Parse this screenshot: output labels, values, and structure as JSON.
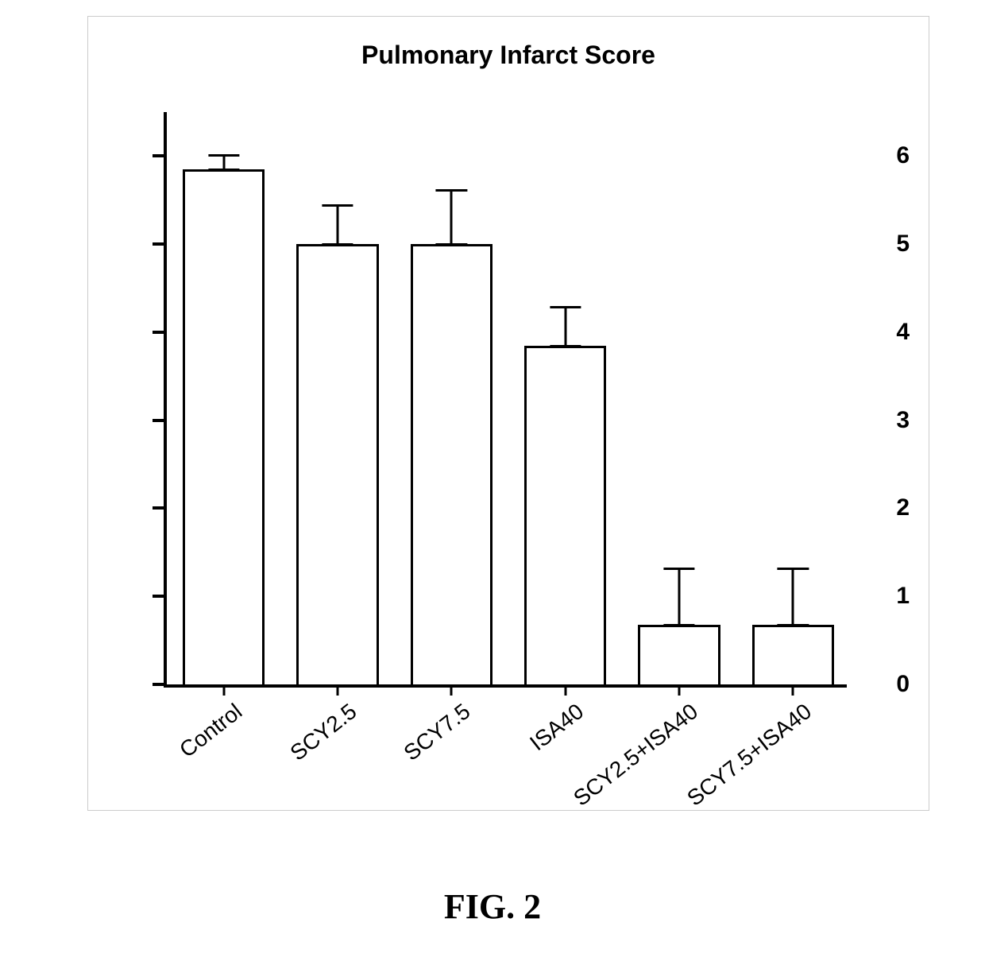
{
  "chart": {
    "type": "bar",
    "title": "Pulmonary Infarct Score",
    "title_fontsize": 32,
    "title_fontweight": "bold",
    "categories": [
      "Control",
      "SCY2.5",
      "SCY7.5",
      "ISA40",
      "SCY2.5+ISA40",
      "SCY7.5+ISA40"
    ],
    "values": [
      5.85,
      5.0,
      5.0,
      3.85,
      0.68,
      0.68
    ],
    "errors": [
      0.17,
      0.45,
      0.62,
      0.45,
      0.65,
      0.65
    ],
    "bar_fill_color": "#ffffff",
    "bar_border_color": "#000000",
    "bar_border_width": 3,
    "bar_width": 0.72,
    "error_bar_color": "#000000",
    "error_cap_width": 0.38,
    "ylim": [
      0,
      6.5
    ],
    "yticks": [
      0,
      1,
      2,
      3,
      4,
      5,
      6
    ],
    "ytick_fontsize": 30,
    "xtick_fontsize": 28,
    "xtick_rotation": -38,
    "axis_color": "#000000",
    "axis_width": 4,
    "background_color": "#ffffff",
    "frame_border_color": "#cccccc"
  },
  "figure_label": "FIG. 2",
  "figure_label_fontsize": 44,
  "figure_label_fontfamily": "Times New Roman"
}
